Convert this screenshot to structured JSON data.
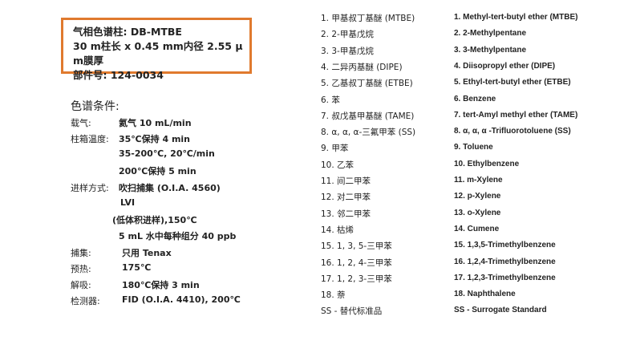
{
  "column_box": {
    "line1": "气相色谱柱: DB-MTBE",
    "line2": "30 m柱长  x 0.45 mm内径  2.55 μ m膜厚",
    "line3": "部件号: 124-0034"
  },
  "conditions": {
    "title": "色谱条件:",
    "rows": [
      {
        "label": "载气:",
        "value": "氦气  10 mL/min"
      },
      {
        "label": "柱箱温度:",
        "value": "35℃保持  4 min"
      },
      {
        "label": "",
        "value": "35-200℃, 20℃/min"
      },
      {
        "label": "",
        "value": "200℃保持  5 min"
      },
      {
        "label": "进样方式:",
        "value": "吹扫捕集  (O.I.A. 4560)"
      },
      {
        "label": "",
        "value": "LVI"
      },
      {
        "label": "",
        "value": "(低体积进样),150℃"
      },
      {
        "label": "",
        "value": "5 mL 水中每种组分  40 ppb"
      },
      {
        "label": "捕集:",
        "value": "只用  Tenax"
      },
      {
        "label": "预热:",
        "value": "175℃"
      },
      {
        "label": "解吸:",
        "value": "180℃保持  3 min"
      },
      {
        "label": "检测器:",
        "value": "FID (O.I.A. 4410), 200℃"
      }
    ]
  },
  "peaks": [
    {
      "zh": "1.   甲基叔丁基醚 (MTBE)",
      "en": "1. Methyl-tert-butyl ether (MTBE)"
    },
    {
      "zh": "2.   2-甲基戊烷",
      "en": "2. 2-Methylpentane"
    },
    {
      "zh": "3.   3-甲基戊烷",
      "en": "3. 3-Methylpentane"
    },
    {
      "zh": "4.   二异丙基醚 (DIPE)",
      "en": "4. Diisopropyl ether (DIPE)"
    },
    {
      "zh": "5.   乙基叔丁基醚 (ETBE)",
      "en": "5. Ethyl-tert-butyl ether (ETBE)"
    },
    {
      "zh": "6.   苯",
      "en": "6. Benzene"
    },
    {
      "zh": "7.   叔戊基甲基醚 (TAME)",
      "en": "7. tert-Amyl methyl ether (TAME)"
    },
    {
      "zh": "8.   α, α, α-三氟甲苯 (SS)",
      "en": "8.  α, α, α -Trifluorotoluene (SS)"
    },
    {
      "zh": "9.   甲苯",
      "en": "9. Toluene"
    },
    {
      "zh": "10.   乙苯",
      "en": "10. Ethylbenzene"
    },
    {
      "zh": "11.  间二甲苯",
      "en": "11. m-Xylene"
    },
    {
      "zh": "12.  对二甲苯",
      "en": "12. p-Xylene"
    },
    {
      "zh": "13.  邻二甲苯",
      "en": "13. o-Xylene"
    },
    {
      "zh": "14.  枯烯",
      "en": "14. Cumene"
    },
    {
      "zh": "15.   1, 3, 5-三甲苯",
      "en": "15. 1,3,5-Trimethylbenzene"
    },
    {
      "zh": "16.   1, 2, 4-三甲苯",
      "en": "16. 1,2,4-Trimethylbenzene"
    },
    {
      "zh": "17.   1, 2, 3-三甲苯",
      "en": "17. 1,2,3-Trimethylbenzene"
    },
    {
      "zh": "18.  萘",
      "en": "18. Naphthalene"
    },
    {
      "zh": "SS  -  替代标准品",
      "en": "SS - Surrogate Standard"
    }
  ]
}
